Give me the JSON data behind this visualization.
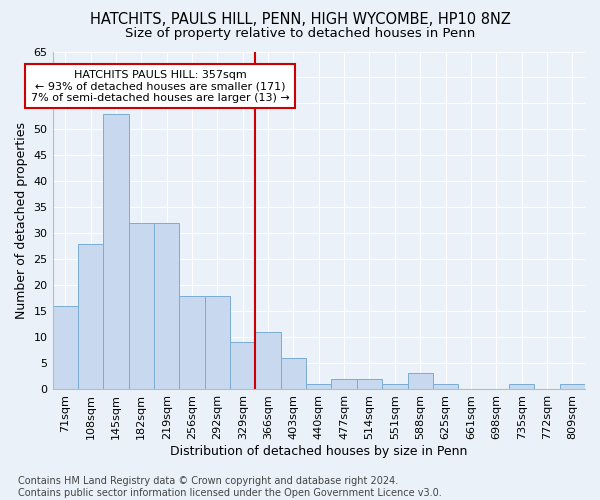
{
  "title": "HATCHITS, PAULS HILL, PENN, HIGH WYCOMBE, HP10 8NZ",
  "subtitle": "Size of property relative to detached houses in Penn",
  "xlabel": "Distribution of detached houses by size in Penn",
  "ylabel": "Number of detached properties",
  "categories": [
    "71sqm",
    "108sqm",
    "145sqm",
    "182sqm",
    "219sqm",
    "256sqm",
    "292sqm",
    "329sqm",
    "366sqm",
    "403sqm",
    "440sqm",
    "477sqm",
    "514sqm",
    "551sqm",
    "588sqm",
    "625sqm",
    "661sqm",
    "698sqm",
    "735sqm",
    "772sqm",
    "809sqm"
  ],
  "values": [
    16,
    28,
    53,
    32,
    32,
    18,
    18,
    9,
    11,
    6,
    1,
    2,
    2,
    1,
    3,
    1,
    0,
    0,
    1,
    0,
    1
  ],
  "bar_color": "#c8d9ef",
  "bar_edge_color": "#7aadd4",
  "vline_color": "#cc0000",
  "annotation_text": "HATCHITS PAULS HILL: 357sqm\n← 93% of detached houses are smaller (171)\n7% of semi-detached houses are larger (13) →",
  "annotation_box_color": "#ffffff",
  "annotation_box_edge": "#cc0000",
  "ylim": [
    0,
    65
  ],
  "bg_color": "#eaf1f8",
  "plot_bg_color": "#eaf1f8",
  "footer": "Contains HM Land Registry data © Crown copyright and database right 2024.\nContains public sector information licensed under the Open Government Licence v3.0.",
  "title_fontsize": 10.5,
  "subtitle_fontsize": 9.5,
  "axis_label_fontsize": 9,
  "tick_fontsize": 8,
  "footer_fontsize": 7
}
